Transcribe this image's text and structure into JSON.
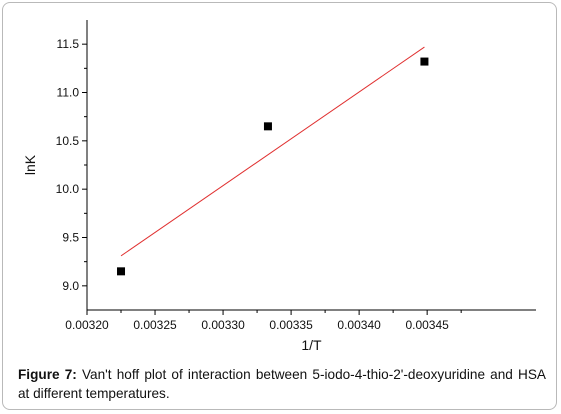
{
  "chart_data": {
    "type": "scatter",
    "title": "",
    "xlabel": "1/T",
    "ylabel": "lnK",
    "xlim": [
      0.0032,
      0.00353
    ],
    "ylim": [
      8.75,
      11.75
    ],
    "x_ticks": [
      "0.00320",
      "0.00325",
      "0.00330",
      "0.00335",
      "0.00340",
      "0.00345"
    ],
    "y_ticks": [
      "9.0",
      "9.5",
      "10.0",
      "10.5",
      "11.0",
      "11.5"
    ],
    "x_tick_values": [
      0.0032,
      0.00325,
      0.0033,
      0.00335,
      0.0034,
      0.00345
    ],
    "y_tick_values": [
      9.0,
      9.5,
      10.0,
      10.5,
      11.0,
      11.5
    ],
    "grid": false,
    "series": [
      {
        "kind": "points",
        "x": [
          0.003225,
          0.003333,
          0.003448
        ],
        "y": [
          9.15,
          10.65,
          11.32
        ],
        "color": "#000000"
      },
      {
        "kind": "fit-line",
        "x": [
          0.003225,
          0.003448
        ],
        "y": [
          9.31,
          11.47
        ],
        "color": "#e03030"
      }
    ]
  },
  "caption": {
    "label": "Figure 7:",
    "text": " Van't hoff plot of interaction between 5-iodo-4-thio-2'-deoxyuridine and HSA at different temperatures."
  }
}
